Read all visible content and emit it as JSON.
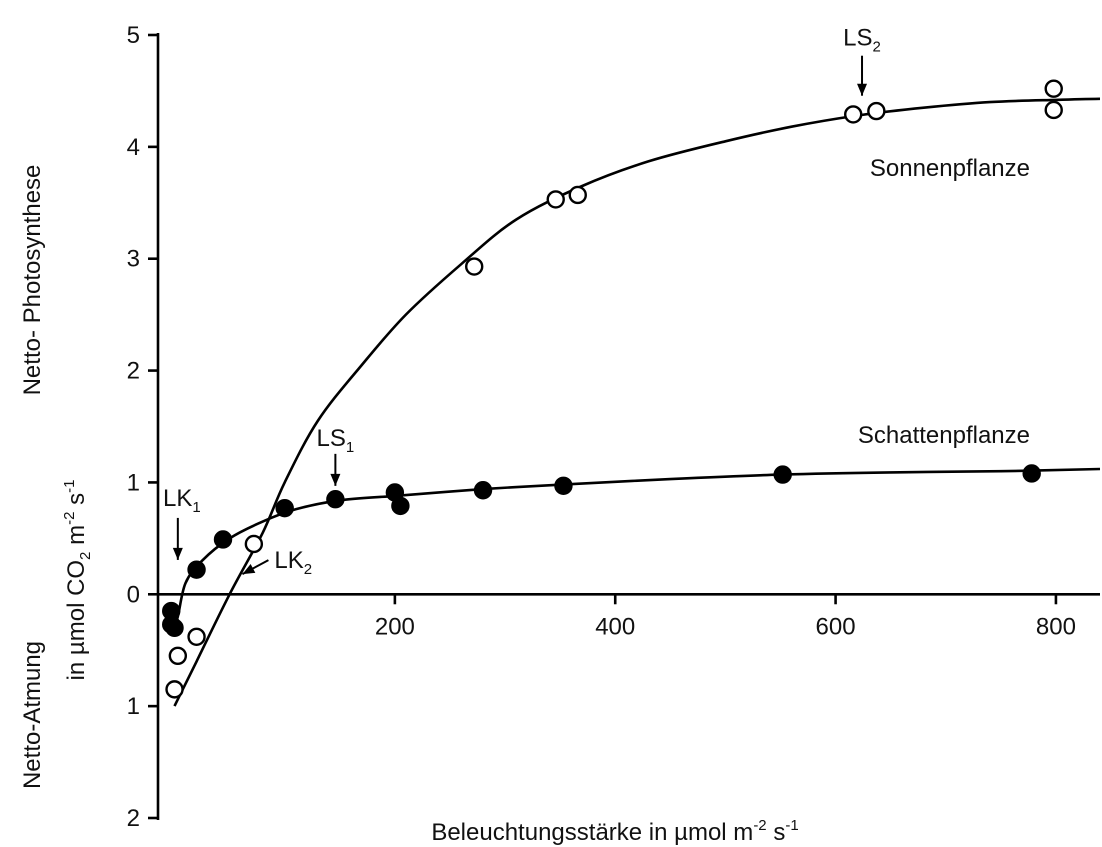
{
  "chart_data": {
    "type": "scatter",
    "title": "",
    "xlabel": {
      "text": "Beleuchtungsstärke in µmol m",
      "sup1": "-2",
      "mid": " s",
      "sup2": "-1"
    },
    "ylabel": {
      "upper": "Netto- Photosynthese",
      "lower": "Netto-Atmung",
      "units": {
        "a": "in µmol CO",
        "sub": "2",
        "b": "  m",
        "sup1": "-2",
        "c": " s",
        "sup2": "-1"
      }
    },
    "xlim": [
      -15,
      840
    ],
    "ylim": [
      -2,
      5
    ],
    "x_ticks": [
      {
        "value": 200,
        "label": "200"
      },
      {
        "value": 400,
        "label": "400"
      },
      {
        "value": 600,
        "label": "600"
      },
      {
        "value": 800,
        "label": "800"
      }
    ],
    "y_ticks": [
      {
        "value": 5,
        "label": "5"
      },
      {
        "value": 4,
        "label": "4"
      },
      {
        "value": 3,
        "label": "3"
      },
      {
        "value": 2,
        "label": "2"
      },
      {
        "value": 1,
        "label": "1"
      },
      {
        "value": 0,
        "label": "0"
      },
      {
        "value": -1,
        "label": "1"
      },
      {
        "value": -2,
        "label": "2"
      }
    ],
    "grid": false,
    "series": [
      {
        "name": "Sonnenpflanze",
        "marker": "open-circle",
        "points": [
          [
            0,
            -0.85
          ],
          [
            3,
            -0.55
          ],
          [
            20,
            -0.38
          ],
          [
            72,
            0.45
          ],
          [
            272,
            2.93
          ],
          [
            346,
            3.53
          ],
          [
            366,
            3.57
          ],
          [
            616,
            4.29
          ],
          [
            637,
            4.32
          ],
          [
            798,
            4.52
          ],
          [
            798,
            4.33
          ]
        ],
        "curve": [
          [
            0,
            -1.0
          ],
          [
            20,
            -0.6
          ],
          [
            50,
            0.0
          ],
          [
            80,
            0.55
          ],
          [
            100,
            1.0
          ],
          [
            130,
            1.55
          ],
          [
            170,
            2.05
          ],
          [
            210,
            2.5
          ],
          [
            260,
            2.95
          ],
          [
            310,
            3.35
          ],
          [
            370,
            3.65
          ],
          [
            430,
            3.87
          ],
          [
            500,
            4.05
          ],
          [
            560,
            4.18
          ],
          [
            620,
            4.28
          ],
          [
            680,
            4.35
          ],
          [
            740,
            4.4
          ],
          [
            800,
            4.42
          ],
          [
            840,
            4.43
          ]
        ]
      },
      {
        "name": "Schattenpflanze",
        "marker": "filled-circle",
        "points": [
          [
            -3,
            -0.15
          ],
          [
            -3,
            -0.27
          ],
          [
            0,
            -0.3
          ],
          [
            20,
            0.22
          ],
          [
            44,
            0.49
          ],
          [
            100,
            0.77
          ],
          [
            146,
            0.85
          ],
          [
            200,
            0.91
          ],
          [
            205,
            0.79
          ],
          [
            280,
            0.93
          ],
          [
            353,
            0.97
          ],
          [
            552,
            1.07
          ],
          [
            778,
            1.08
          ]
        ],
        "curve": [
          [
            -2,
            -0.35
          ],
          [
            3,
            -0.2
          ],
          [
            10,
            0.1
          ],
          [
            25,
            0.3
          ],
          [
            50,
            0.5
          ],
          [
            80,
            0.65
          ],
          [
            110,
            0.76
          ],
          [
            150,
            0.84
          ],
          [
            200,
            0.88
          ],
          [
            280,
            0.94
          ],
          [
            350,
            0.98
          ],
          [
            450,
            1.03
          ],
          [
            550,
            1.07
          ],
          [
            650,
            1.09
          ],
          [
            750,
            1.1
          ],
          [
            840,
            1.12
          ]
        ]
      }
    ],
    "annotations": [
      {
        "id": "ls2",
        "base": "LS",
        "sub": "2",
        "x": 624,
        "y": 4.35
      },
      {
        "id": "ls1",
        "base": "LS",
        "sub": "1",
        "x": 146,
        "y": 0.88
      },
      {
        "id": "lk1",
        "base": "LK",
        "sub": "1",
        "x": 3,
        "y": 0.2
      },
      {
        "id": "lk2",
        "base": "LK",
        "sub": "2",
        "x": 58,
        "y": 0.18
      }
    ]
  }
}
